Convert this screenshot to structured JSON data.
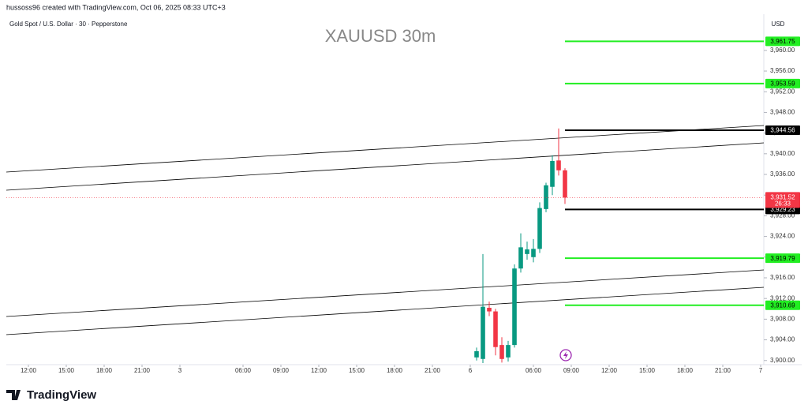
{
  "header": {
    "credit": "hussoss96 created with TradingView.com, Oct 06, 2025 08:33 UTC+3",
    "symbol": "Gold Spot / U.S. Dollar · 30 · Pepperstone"
  },
  "brand": "TradingView",
  "chart_data": {
    "type": "candlestick",
    "title": "XAUUSD 30m",
    "currency": "USD",
    "x": [
      74.5,
      75.5,
      76.5,
      77.5,
      78.5,
      79.5,
      80.5,
      81.5,
      82.5,
      83.5,
      84.5,
      85.5,
      86.5,
      87.5,
      88.5
    ],
    "open": [
      3900.6,
      3900.3,
      3910.2,
      3909.5,
      3903.0,
      3900.6,
      3903.0,
      3917.8,
      3920.6,
      3920.0,
      3921.6,
      3929.3,
      3933.6,
      3938.7,
      3936.8
    ],
    "high": [
      3902.5,
      3920.6,
      3911.4,
      3910.0,
      3904.5,
      3903.8,
      3918.6,
      3924.6,
      3923.0,
      3923.5,
      3930.6,
      3934.4,
      3939.7,
      3944.9,
      3937.2
    ],
    "low": [
      3900.0,
      3899.5,
      3908.6,
      3901.0,
      3899.6,
      3899.8,
      3902.5,
      3917.0,
      3919.5,
      3919.0,
      3920.8,
      3928.7,
      3932.0,
      3935.8,
      3930.3
    ],
    "close": [
      3901.8,
      3910.4,
      3909.5,
      3902.6,
      3900.3,
      3903.0,
      3917.8,
      3921.9,
      3921.5,
      3921.6,
      3929.5,
      3933.9,
      3938.6,
      3936.8,
      3931.52
    ],
    "up_color": "#089981",
    "down_color": "#f23645",
    "xlim": [
      0,
      120
    ],
    "xticks": [
      {
        "value": 3.5,
        "label": "12:00"
      },
      {
        "value": 9.5,
        "label": "15:00"
      },
      {
        "value": 15.5,
        "label": "18:00"
      },
      {
        "value": 21.5,
        "label": "21:00"
      },
      {
        "value": 27.5,
        "label": "3"
      },
      {
        "value": 37.5,
        "label": "06:00"
      },
      {
        "value": 43.5,
        "label": "09:00"
      },
      {
        "value": 49.5,
        "label": "12:00"
      },
      {
        "value": 55.5,
        "label": "15:00"
      },
      {
        "value": 61.5,
        "label": "18:00"
      },
      {
        "value": 67.5,
        "label": "21:00"
      },
      {
        "value": 73.5,
        "label": "6"
      },
      {
        "value": 83.5,
        "label": "06:00"
      },
      {
        "value": 89.5,
        "label": "09:00"
      },
      {
        "value": 95.5,
        "label": "12:00"
      },
      {
        "value": 101.5,
        "label": "15:00"
      },
      {
        "value": 107.5,
        "label": "18:00"
      },
      {
        "value": 113.5,
        "label": "21:00"
      },
      {
        "value": 119.5,
        "label": "7"
      }
    ],
    "ylim": [
      3899.2,
      3967.0
    ],
    "yticks": [
      {
        "value": 3900,
        "label": "3,900.00"
      },
      {
        "value": 3904,
        "label": "3,904.00"
      },
      {
        "value": 3908,
        "label": "3,908.00"
      },
      {
        "value": 3912,
        "label": "3,912.00"
      },
      {
        "value": 3916,
        "label": "3,916.00"
      },
      {
        "value": 3920,
        "label": "3,920.00"
      },
      {
        "value": 3924,
        "label": "3,924.00"
      },
      {
        "value": 3928,
        "label": "3,928.00"
      },
      {
        "value": 3932,
        "label": "3,932.00"
      },
      {
        "value": 3936,
        "label": "3,936.00"
      },
      {
        "value": 3940,
        "label": "3,940.00"
      },
      {
        "value": 3944,
        "label": "3,944.00"
      },
      {
        "value": 3948,
        "label": "3,948.00"
      },
      {
        "value": 3952,
        "label": "3,952.00"
      },
      {
        "value": 3956,
        "label": "3,956.00"
      },
      {
        "value": 3960,
        "label": "3,960.00"
      }
    ],
    "levels": {
      "values": [
        3961.75,
        3953.59,
        3944.56,
        3929.23,
        3919.79,
        3910.69
      ],
      "value_labels": [
        "3,961.75",
        "3,953.59",
        "3,944.56",
        "3,929.23",
        "3,919.79",
        "3,910.69"
      ],
      "colors": [
        "#22ee22",
        "#22ee22",
        "#000000",
        "#000000",
        "#22ee22",
        "#22ee22"
      ]
    },
    "last_price": 3931.52,
    "last_price_label": "3,931.52",
    "countdown": "26:33"
  }
}
